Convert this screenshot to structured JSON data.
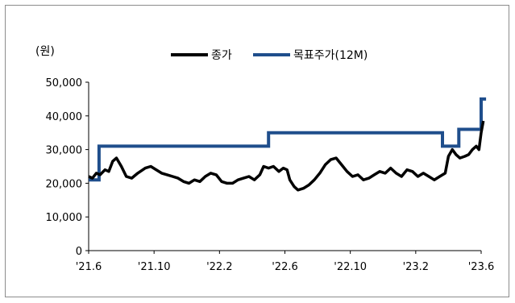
{
  "chart_data": {
    "type": "line",
    "unit_label": "(원)",
    "ylim": [
      0,
      50000
    ],
    "yticks": [
      "0",
      "10,000",
      "20,000",
      "30,000",
      "40,000",
      "50,000"
    ],
    "xticks": [
      "'21.6",
      "'21.10",
      "'22.2",
      "'22.6",
      "'22.10",
      "'23.2",
      "'23.6"
    ],
    "xlim": [
      "2021-06",
      "2023-06"
    ],
    "legend_position": "top-center",
    "grid": false,
    "series": [
      {
        "name": "종가",
        "color": "#000000",
        "points": [
          [
            "2021-06-01",
            22000
          ],
          [
            "2021-06-08",
            21500
          ],
          [
            "2021-06-15",
            23000
          ],
          [
            "2021-06-22",
            22500
          ],
          [
            "2021-07-01",
            24000
          ],
          [
            "2021-07-08",
            23500
          ],
          [
            "2021-07-15",
            26500
          ],
          [
            "2021-07-22",
            27500
          ],
          [
            "2021-08-01",
            25000
          ],
          [
            "2021-08-10",
            22000
          ],
          [
            "2021-08-20",
            21500
          ],
          [
            "2021-09-01",
            23000
          ],
          [
            "2021-09-15",
            24500
          ],
          [
            "2021-09-25",
            25000
          ],
          [
            "2021-10-05",
            24000
          ],
          [
            "2021-10-15",
            23000
          ],
          [
            "2021-10-25",
            22500
          ],
          [
            "2021-11-05",
            22000
          ],
          [
            "2021-11-15",
            21500
          ],
          [
            "2021-11-25",
            20500
          ],
          [
            "2021-12-05",
            20000
          ],
          [
            "2021-12-15",
            21000
          ],
          [
            "2021-12-25",
            20500
          ],
          [
            "2022-01-05",
            22000
          ],
          [
            "2022-01-15",
            23000
          ],
          [
            "2022-01-25",
            22500
          ],
          [
            "2022-02-05",
            20500
          ],
          [
            "2022-02-15",
            20000
          ],
          [
            "2022-02-25",
            20000
          ],
          [
            "2022-03-05",
            21000
          ],
          [
            "2022-03-15",
            21500
          ],
          [
            "2022-03-25",
            22000
          ],
          [
            "2022-04-05",
            21000
          ],
          [
            "2022-04-15",
            22500
          ],
          [
            "2022-04-22",
            25000
          ],
          [
            "2022-05-01",
            24500
          ],
          [
            "2022-05-10",
            25000
          ],
          [
            "2022-05-20",
            23500
          ],
          [
            "2022-05-28",
            24500
          ],
          [
            "2022-06-05",
            24000
          ],
          [
            "2022-06-10",
            21000
          ],
          [
            "2022-06-18",
            19000
          ],
          [
            "2022-06-25",
            18000
          ],
          [
            "2022-07-05",
            18500
          ],
          [
            "2022-07-15",
            19500
          ],
          [
            "2022-07-25",
            21000
          ],
          [
            "2022-08-05",
            23000
          ],
          [
            "2022-08-15",
            25500
          ],
          [
            "2022-08-25",
            27000
          ],
          [
            "2022-09-05",
            27500
          ],
          [
            "2022-09-15",
            25500
          ],
          [
            "2022-09-25",
            23500
          ],
          [
            "2022-10-05",
            22000
          ],
          [
            "2022-10-15",
            22500
          ],
          [
            "2022-10-25",
            21000
          ],
          [
            "2022-11-05",
            21500
          ],
          [
            "2022-11-15",
            22500
          ],
          [
            "2022-11-25",
            23500
          ],
          [
            "2022-12-05",
            23000
          ],
          [
            "2022-12-15",
            24500
          ],
          [
            "2022-12-25",
            23000
          ],
          [
            "2023-01-05",
            22000
          ],
          [
            "2023-01-15",
            24000
          ],
          [
            "2023-01-25",
            23500
          ],
          [
            "2023-02-05",
            22000
          ],
          [
            "2023-02-15",
            23000
          ],
          [
            "2023-02-25",
            22000
          ],
          [
            "2023-03-05",
            21000
          ],
          [
            "2023-03-15",
            22000
          ],
          [
            "2023-03-25",
            23000
          ],
          [
            "2023-04-01",
            28000
          ],
          [
            "2023-04-08",
            30000
          ],
          [
            "2023-04-15",
            28500
          ],
          [
            "2023-04-22",
            27500
          ],
          [
            "2023-05-01",
            28000
          ],
          [
            "2023-05-08",
            28500
          ],
          [
            "2023-05-15",
            30000
          ],
          [
            "2023-05-22",
            31000
          ],
          [
            "2023-05-27",
            30000
          ],
          [
            "2023-06-01",
            35000
          ],
          [
            "2023-06-05",
            38500
          ]
        ]
      },
      {
        "name": "목표주가(12M)",
        "color": "#1f4e8c",
        "points": [
          [
            "2021-06-01",
            21000
          ],
          [
            "2021-06-20",
            21000
          ],
          [
            "2021-06-20",
            31000
          ],
          [
            "2022-05-01",
            31000
          ],
          [
            "2022-05-01",
            35000
          ],
          [
            "2023-03-20",
            35000
          ],
          [
            "2023-03-20",
            31000
          ],
          [
            "2023-04-20",
            31000
          ],
          [
            "2023-04-20",
            36000
          ],
          [
            "2023-06-01",
            36000
          ],
          [
            "2023-06-01",
            45000
          ],
          [
            "2023-06-10",
            45000
          ]
        ]
      }
    ]
  }
}
